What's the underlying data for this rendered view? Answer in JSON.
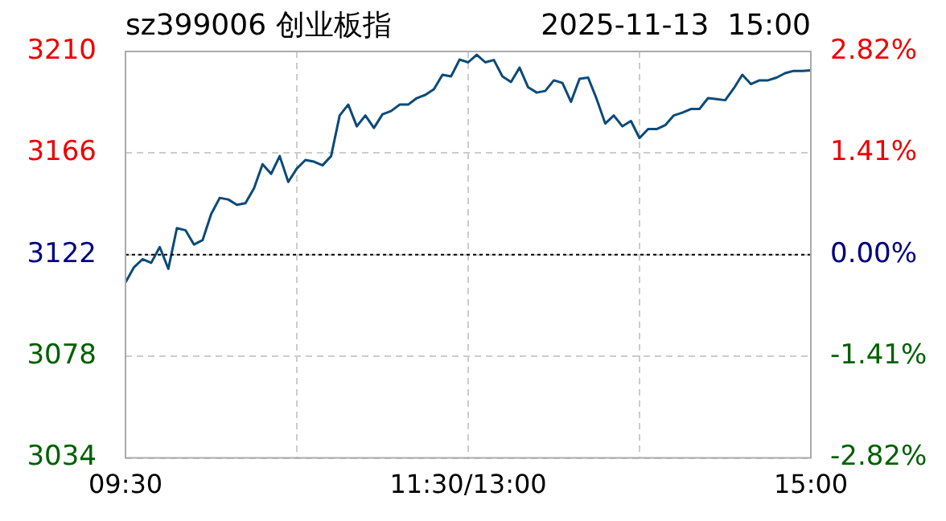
{
  "chart_data": {
    "type": "line",
    "title": "sz399006 创业板指",
    "subtitle": "2025-11-13  15:00",
    "categories": [
      "09:30",
      null,
      null,
      null,
      null,
      null,
      null,
      null,
      null,
      null,
      null,
      null,
      null,
      null,
      null,
      null,
      null,
      null,
      null,
      null,
      null,
      null,
      null,
      null,
      null,
      null,
      null,
      null,
      null,
      null,
      null,
      null,
      null,
      null,
      null,
      null,
      null,
      null,
      null,
      null,
      "11:30/13:00",
      null,
      null,
      null,
      null,
      null,
      null,
      null,
      null,
      null,
      null,
      null,
      null,
      null,
      null,
      null,
      null,
      null,
      null,
      null,
      null,
      null,
      null,
      null,
      null,
      null,
      null,
      null,
      null,
      null,
      null,
      null,
      null,
      null,
      null,
      null,
      null,
      null,
      null,
      null,
      "15:00"
    ],
    "series": [
      {
        "color": "#0b4a78",
        "values": [
          3110.0,
          3116.6,
          3120.1,
          3118.5,
          3125.3,
          3115.9,
          3133.5,
          3132.6,
          3126.4,
          3128.3,
          3139.6,
          3146.6,
          3145.9,
          3143.6,
          3144.3,
          3150.7,
          3161.2,
          3157.0,
          3164.7,
          3153.5,
          3159.3,
          3163.0,
          3162.3,
          3160.7,
          3164.7,
          3182.3,
          3187.0,
          3177.6,
          3182.3,
          3176.9,
          3182.8,
          3184.2,
          3187.0,
          3187.0,
          3189.8,
          3191.2,
          3193.6,
          3199.9,
          3199.2,
          3206.5,
          3205.3,
          3208.6,
          3205.3,
          3206.3,
          3199.2,
          3196.8,
          3203.0,
          3194.5,
          3192.2,
          3192.9,
          3197.5,
          3196.4,
          3188.2,
          3198.2,
          3198.7,
          3189.4,
          3178.8,
          3182.3,
          3177.6,
          3179.9,
          3172.5,
          3176.4,
          3176.4,
          3178.1,
          3182.3,
          3183.5,
          3185.1,
          3185.1,
          3189.8,
          3189.4,
          3188.9,
          3194.0,
          3199.9,
          3195.9,
          3197.5,
          3197.5,
          3198.7,
          3200.6,
          3201.6,
          3201.6,
          3201.8
        ]
      }
    ],
    "ylim": [
      3034,
      3210
    ],
    "yticks": [
      3034,
      3078,
      3122,
      3166,
      3210
    ],
    "y2lim": [
      -2.82,
      2.82
    ],
    "y2ticks": [
      {
        "value": -2.82,
        "label": "-2.82%"
      },
      {
        "value": -1.41,
        "label": "-1.41%"
      },
      {
        "value": 0,
        "label": "0.00%"
      },
      {
        "value": 1.41,
        "label": "1.41%"
      },
      {
        "value": 2.82,
        "label": "2.82%"
      }
    ],
    "ref_lines": [
      {
        "axis": "y",
        "value": 3122,
        "color": "#000000",
        "line_style": "dotted"
      }
    ],
    "grid": true,
    "legend": false,
    "marker": "none",
    "line_style": "solid"
  }
}
